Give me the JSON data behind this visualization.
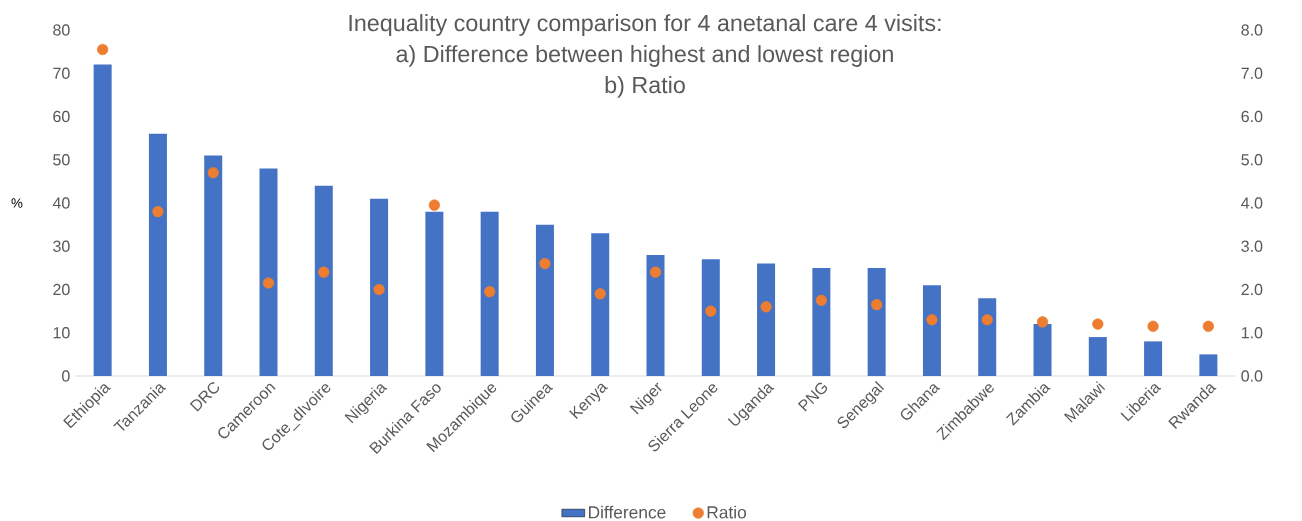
{
  "chart_data": {
    "type": "bar",
    "title": "Inequality country comparison for 4 anetanal care 4 visits:",
    "subtitle": "a) Difference between highest and lowest region",
    "annotations": [
      "b) Ratio"
    ],
    "ylabel": "%",
    "categories": [
      "Ethiopia",
      "Tanzania",
      "DRC",
      "Cameroon",
      "Cote_dIvoire",
      "Nigeria",
      "Burkina Faso",
      "Mozambique",
      "Guinea",
      "Kenya",
      "Niger",
      "Sierra Leone",
      "Uganda",
      "PNG",
      "Senegal",
      "Ghana",
      "Zimbabwe",
      "Zambia",
      "Malawi",
      "Liberia",
      "Rwanda"
    ],
    "series": [
      {
        "name": "Difference",
        "type": "bar",
        "color": "#4472c4",
        "values": [
          72,
          56,
          51,
          48,
          44,
          41,
          38,
          38,
          35,
          33,
          28,
          27,
          26,
          25,
          25,
          21,
          18,
          12,
          9,
          8,
          5
        ]
      },
      {
        "name": "Ratio",
        "type": "scatter",
        "axis": "y2",
        "color": "#ed7d31",
        "values": [
          7.55,
          3.8,
          4.7,
          2.15,
          2.4,
          2.0,
          3.95,
          1.95,
          2.6,
          1.9,
          2.4,
          1.5,
          1.6,
          1.75,
          1.65,
          1.3,
          1.3,
          1.25,
          1.2,
          1.15,
          1.15
        ]
      }
    ],
    "ylim": [
      0,
      80
    ],
    "yticks": [
      0,
      10,
      20,
      30,
      40,
      50,
      60,
      70,
      80
    ],
    "y2lim": [
      0,
      8
    ],
    "y2ticks": [
      {
        "value": 0,
        "label": "0.0"
      },
      {
        "value": 1,
        "label": "1.0"
      },
      {
        "value": 2,
        "label": "2.0"
      },
      {
        "value": 3,
        "label": "3.0"
      },
      {
        "value": 4,
        "label": "4.0"
      },
      {
        "value": 5,
        "label": "5.0"
      },
      {
        "value": 6,
        "label": "6.0"
      },
      {
        "value": 7,
        "label": "7.0"
      },
      {
        "value": 8,
        "label": "8.0"
      }
    ],
    "legend": "bottom"
  }
}
